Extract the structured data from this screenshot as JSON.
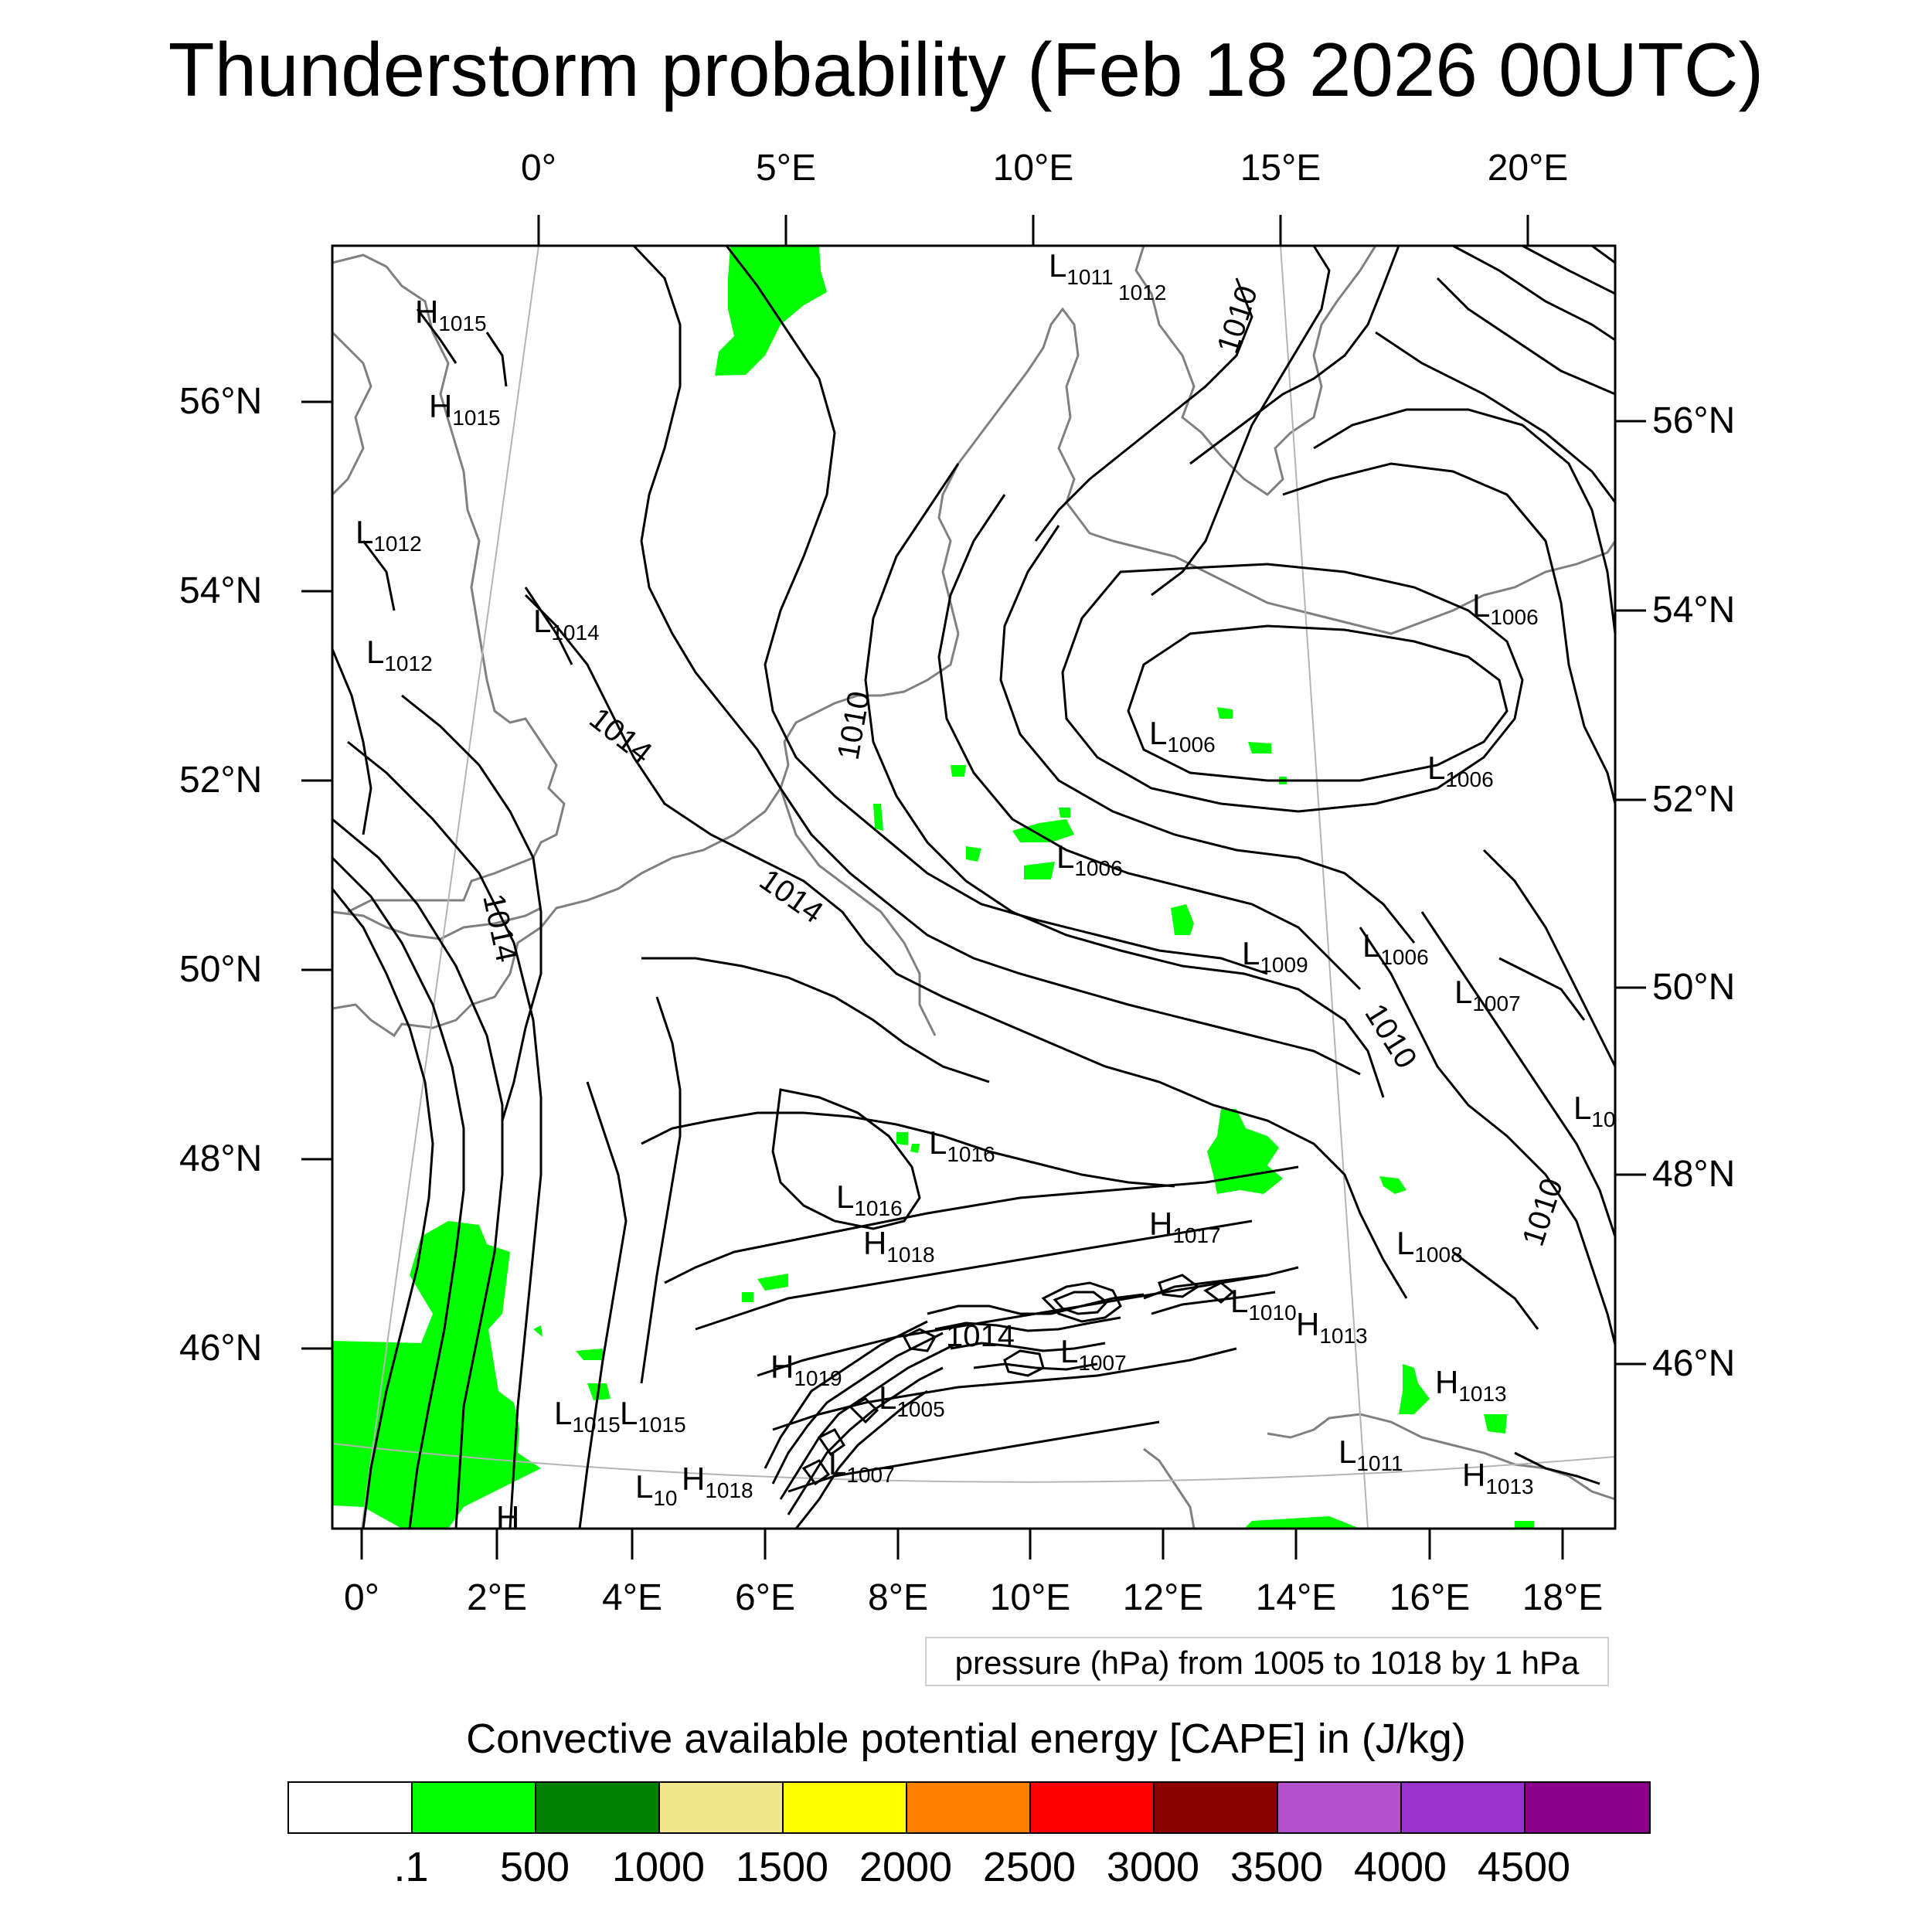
{
  "title": "Thunderstorm probability (Feb 18 2026 00UTC)",
  "top_axis": [
    "0°",
    "5°E",
    "10°E",
    "15°E",
    "20°E"
  ],
  "bottom_axis": [
    "0°",
    "2°E",
    "4°E",
    "6°E",
    "8°E",
    "10°E",
    "12°E",
    "14°E",
    "16°E",
    "18°E"
  ],
  "left_axis": [
    "56°N",
    "54°N",
    "52°N",
    "50°N",
    "48°N",
    "46°N"
  ],
  "right_axis": [
    "56°N",
    "54°N",
    "52°N",
    "50°N",
    "48°N",
    "46°N"
  ],
  "isobar_labels": [
    "1010",
    "1014",
    "1010",
    "1014",
    "1014",
    "1014",
    "1010",
    "1010"
  ],
  "pressure_centers": [
    {
      "t": "H",
      "v": "1015"
    },
    {
      "t": "H",
      "v": "1015"
    },
    {
      "t": "L",
      "v": "1011"
    },
    {
      "t": "",
      "v": "1012"
    },
    {
      "t": "L",
      "v": "1012"
    },
    {
      "t": "L",
      "v": "1014"
    },
    {
      "t": "L",
      "v": "1012"
    },
    {
      "t": "L",
      "v": "1006"
    },
    {
      "t": "L",
      "v": "1006"
    },
    {
      "t": "L",
      "v": "1006"
    },
    {
      "t": "L",
      "v": "1006"
    },
    {
      "t": "L",
      "v": "1009"
    },
    {
      "t": "L",
      "v": "1006"
    },
    {
      "t": "L",
      "v": "1007"
    },
    {
      "t": "L",
      "v": "10"
    },
    {
      "t": "L",
      "v": "1016"
    },
    {
      "t": "L",
      "v": "1016"
    },
    {
      "t": "H",
      "v": "1018"
    },
    {
      "t": "H",
      "v": "1017"
    },
    {
      "t": "L",
      "v": "1008"
    },
    {
      "t": "L",
      "v": "1010"
    },
    {
      "t": "H",
      "v": "1013"
    },
    {
      "t": "L",
      "v": "1007"
    },
    {
      "t": "H",
      "v": "1019"
    },
    {
      "t": "L",
      "v": "1005"
    },
    {
      "t": "H",
      "v": "1013"
    },
    {
      "t": "L",
      "v": "1015"
    },
    {
      "t": "L",
      "v": "1015"
    },
    {
      "t": "L",
      "v": "10"
    },
    {
      "t": "H",
      "v": "1018"
    },
    {
      "t": "L",
      "v": "1007"
    },
    {
      "t": "L",
      "v": "1011"
    },
    {
      "t": "H",
      "v": "1013"
    },
    {
      "t": "H",
      "v": ""
    }
  ],
  "pressure_note": "pressure (hPa) from 1005 to 1018 by 1 hPa",
  "legend": {
    "title": "Convective available potential energy [CAPE] in (J/kg)",
    "colors": [
      "#ffffff",
      "#00ff00",
      "#008000",
      "#f0e68c",
      "#ffff00",
      "#ff8000",
      "#ff0000",
      "#8b0000",
      "#b452cd",
      "#9a32cd",
      "#8b008b"
    ],
    "labels": [
      ".1",
      "500",
      "1000",
      "1500",
      "2000",
      "2500",
      "3000",
      "3500",
      "4000",
      "4500"
    ]
  },
  "cape_fill_color": "#00ff00"
}
